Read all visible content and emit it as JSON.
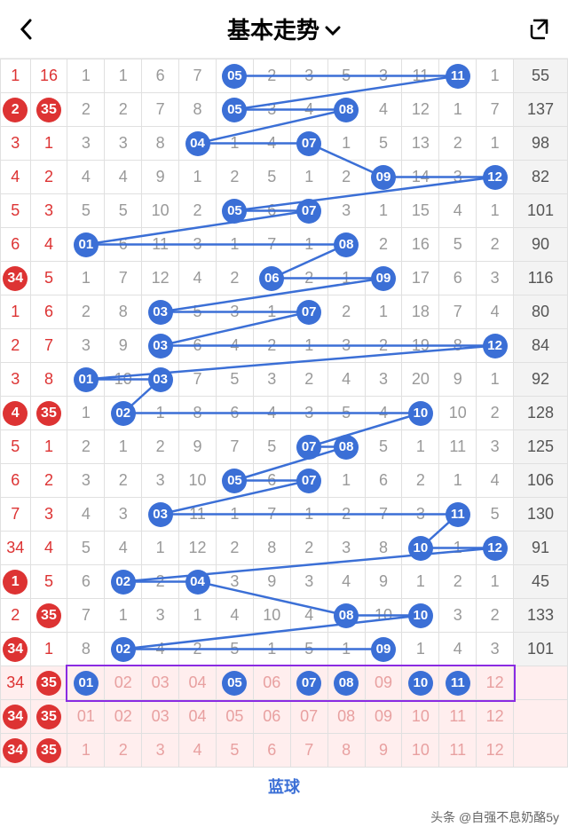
{
  "header": {
    "title": "基本走势"
  },
  "footer": {
    "label": "蓝球",
    "attrib": "头条 @自强不息奶酪5y"
  },
  "columns": 12,
  "idx_circled_rows": [
    1,
    6,
    10,
    15,
    17,
    19,
    20,
    21,
    22
  ],
  "ball_color": "#3b6fd6",
  "idx_color": "#d33",
  "grid_color": "#e0e0e0",
  "pink_bg": "#ffeeee",
  "purple_box_color": "#8a2be2",
  "rows": [
    {
      "a": "1",
      "b": "16",
      "cells": [
        "1",
        "1",
        "6",
        "7",
        "05",
        "2",
        "3",
        "5",
        "3",
        "11",
        "11",
        "1"
      ],
      "hits": [
        5,
        11
      ],
      "sum": "55"
    },
    {
      "a": "2",
      "b": "35",
      "cells": [
        "2",
        "2",
        "7",
        "8",
        "05",
        "3",
        "4",
        "08",
        "4",
        "12",
        "1",
        "7"
      ],
      "hits": [
        5,
        8
      ],
      "sum": "137"
    },
    {
      "a": "3",
      "b": "1",
      "cells": [
        "3",
        "3",
        "8",
        "04",
        "1",
        "4",
        "07",
        "1",
        "5",
        "13",
        "2",
        "1"
      ],
      "hits": [
        4,
        7
      ],
      "sum": "98"
    },
    {
      "a": "4",
      "b": "2",
      "cells": [
        "4",
        "4",
        "9",
        "1",
        "2",
        "5",
        "1",
        "2",
        "09",
        "14",
        "3",
        "12"
      ],
      "hits": [
        9,
        12
      ],
      "sum": "82"
    },
    {
      "a": "5",
      "b": "3",
      "cells": [
        "5",
        "5",
        "10",
        "2",
        "05",
        "6",
        "07",
        "3",
        "1",
        "15",
        "4",
        "1"
      ],
      "hits": [
        5,
        7
      ],
      "sum": "101"
    },
    {
      "a": "6",
      "b": "4",
      "cells": [
        "01",
        "6",
        "11",
        "3",
        "1",
        "7",
        "1",
        "08",
        "2",
        "16",
        "5",
        "2"
      ],
      "hits": [
        1,
        8
      ],
      "sum": "90"
    },
    {
      "a": "34",
      "b": "5",
      "cells": [
        "1",
        "7",
        "12",
        "4",
        "2",
        "06",
        "2",
        "1",
        "09",
        "17",
        "6",
        "3"
      ],
      "hits": [
        6,
        9
      ],
      "sum": "116"
    },
    {
      "a": "1",
      "b": "6",
      "cells": [
        "2",
        "8",
        "03",
        "5",
        "3",
        "1",
        "07",
        "2",
        "1",
        "18",
        "7",
        "4"
      ],
      "hits": [
        3,
        7
      ],
      "sum": "80"
    },
    {
      "a": "2",
      "b": "7",
      "cells": [
        "3",
        "9",
        "03",
        "6",
        "4",
        "2",
        "1",
        "3",
        "2",
        "19",
        "8",
        "12"
      ],
      "hits": [
        3,
        12
      ],
      "sum": "84"
    },
    {
      "a": "3",
      "b": "8",
      "cells": [
        "01",
        "10",
        "03",
        "7",
        "5",
        "3",
        "2",
        "4",
        "3",
        "20",
        "9",
        "1"
      ],
      "hits": [
        1,
        3
      ],
      "sum": "92"
    },
    {
      "a": "4",
      "b": "35",
      "cells": [
        "1",
        "02",
        "1",
        "8",
        "6",
        "4",
        "3",
        "5",
        "4",
        "10",
        "10",
        "2"
      ],
      "hits": [
        2,
        10
      ],
      "sum": "128"
    },
    {
      "a": "5",
      "b": "1",
      "cells": [
        "2",
        "1",
        "2",
        "9",
        "7",
        "5",
        "07",
        "08",
        "5",
        "1",
        "11",
        "3"
      ],
      "hits": [
        7,
        8
      ],
      "sum": "125"
    },
    {
      "a": "6",
      "b": "2",
      "cells": [
        "3",
        "2",
        "3",
        "10",
        "05",
        "6",
        "07",
        "1",
        "6",
        "2",
        "1",
        "4"
      ],
      "hits": [
        5,
        7
      ],
      "sum": "106"
    },
    {
      "a": "7",
      "b": "3",
      "cells": [
        "4",
        "3",
        "03",
        "11",
        "1",
        "7",
        "1",
        "2",
        "7",
        "3",
        "11",
        "5"
      ],
      "hits": [
        3,
        11
      ],
      "sum": "130"
    },
    {
      "a": "34",
      "b": "4",
      "cells": [
        "5",
        "4",
        "1",
        "12",
        "2",
        "8",
        "2",
        "3",
        "8",
        "10",
        "1",
        "12"
      ],
      "hits": [
        10,
        12
      ],
      "sum": "91"
    },
    {
      "a": "1",
      "b": "5",
      "cells": [
        "6",
        "02",
        "2",
        "04",
        "3",
        "9",
        "3",
        "4",
        "9",
        "1",
        "2",
        "1"
      ],
      "hits": [
        2,
        4
      ],
      "sum": "45"
    },
    {
      "a": "2",
      "b": "35",
      "cells": [
        "7",
        "1",
        "3",
        "1",
        "4",
        "10",
        "4",
        "08",
        "10",
        "10",
        "3",
        "2"
      ],
      "hits": [
        8,
        10
      ],
      "sum": "133"
    },
    {
      "a": "34",
      "b": "1",
      "cells": [
        "8",
        "02",
        "4",
        "2",
        "5",
        "1",
        "5",
        "1",
        "09",
        "1",
        "4",
        "3"
      ],
      "hits": [
        2,
        9
      ],
      "sum": "101"
    },
    {
      "a": "34",
      "b": "35",
      "cells": [
        "01",
        "02",
        "03",
        "04",
        "05",
        "06",
        "07",
        "08",
        "09",
        "10",
        "11",
        "12"
      ],
      "hits": [
        1,
        5,
        7,
        8,
        10,
        11
      ],
      "sum": "",
      "pink": true,
      "boxed": true
    },
    {
      "a": "34",
      "b": "35",
      "cells": [
        "01",
        "02",
        "03",
        "04",
        "05",
        "06",
        "07",
        "08",
        "09",
        "10",
        "11",
        "12"
      ],
      "hits": [],
      "sum": "",
      "pink": true
    },
    {
      "a": "34",
      "b": "35",
      "cells": [
        "1",
        "2",
        "3",
        "4",
        "5",
        "6",
        "7",
        "8",
        "9",
        "10",
        "11",
        "12"
      ],
      "hits": [],
      "sum": "",
      "pink": true
    }
  ]
}
